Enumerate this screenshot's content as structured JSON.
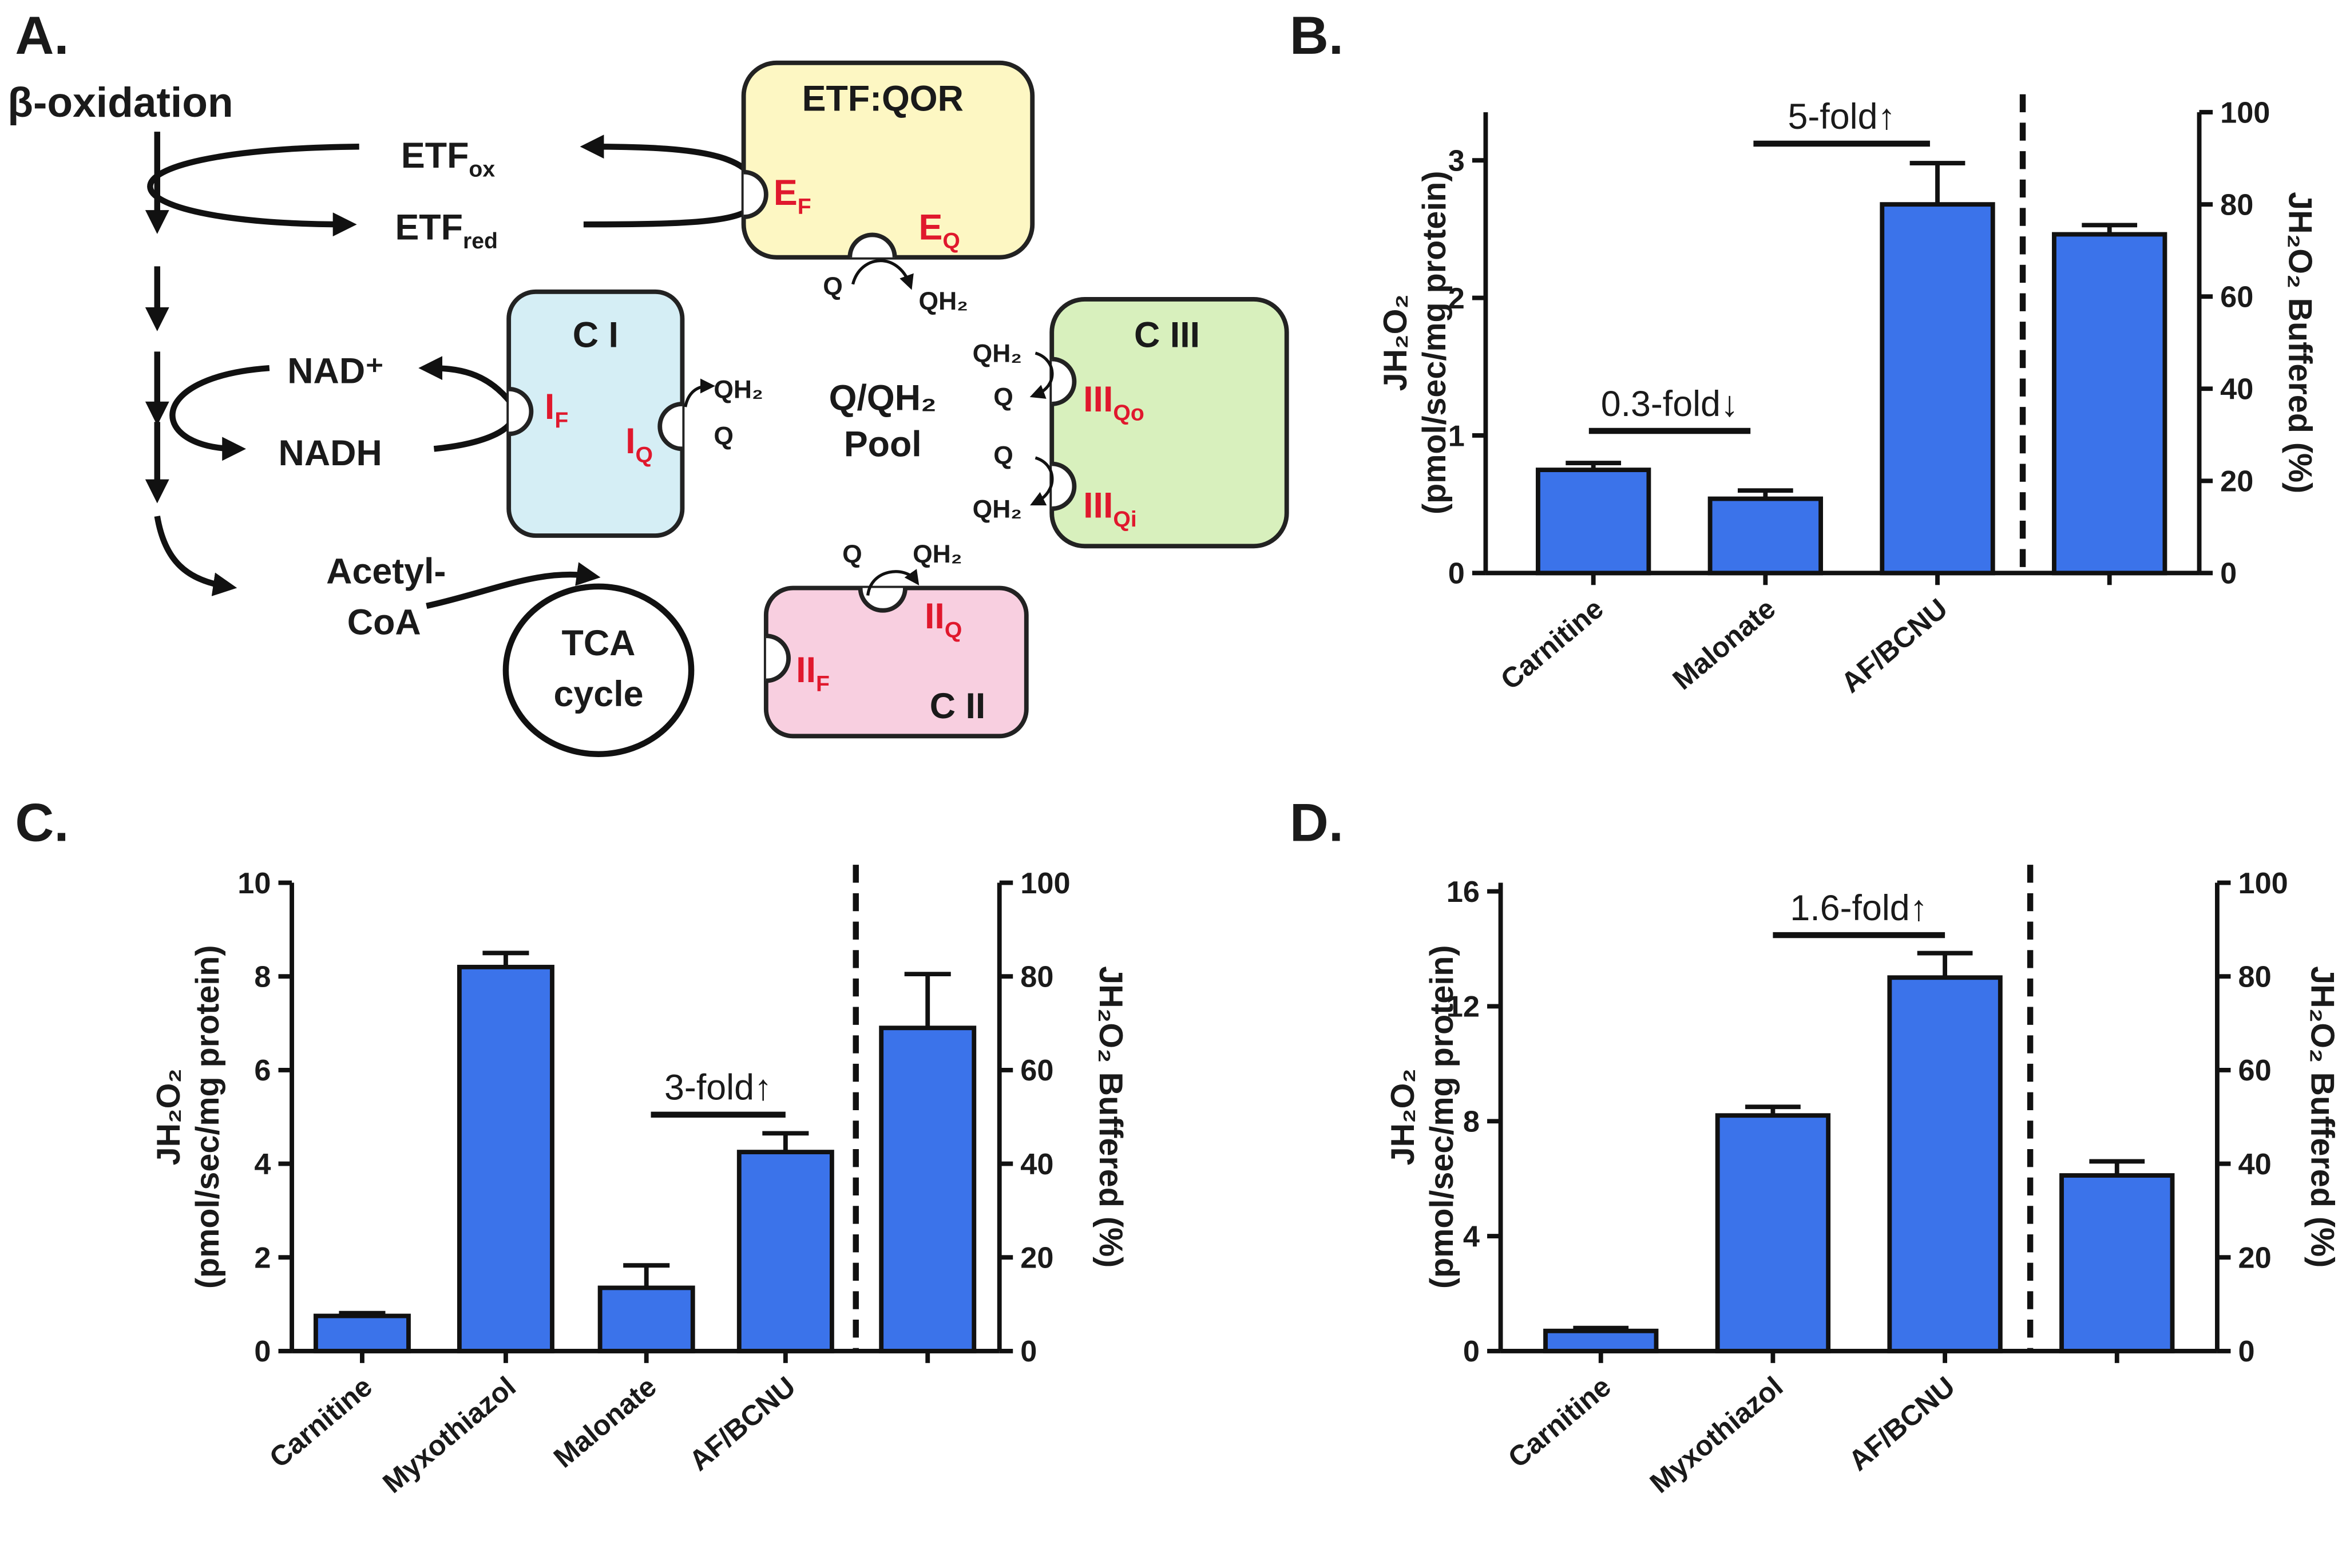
{
  "diagram": {
    "title": "A.",
    "pathway": "β-oxidation",
    "etf_ox": {
      "text": "ETF",
      "sub": "ox"
    },
    "etf_red": {
      "text": "ETF",
      "sub": "red"
    },
    "etf_qor": {
      "label": "ETF:QOR",
      "site_f": {
        "text": "E",
        "sub": "F"
      },
      "site_q": {
        "text": "E",
        "sub": "Q"
      },
      "q": "Q",
      "qh2": "QH₂"
    },
    "c1": {
      "label": "C I",
      "site_f": {
        "text": "I",
        "sub": "F"
      },
      "site_q": {
        "text": "I",
        "sub": "Q"
      },
      "qh2": "QH₂",
      "q": "Q"
    },
    "nad": "NAD⁺",
    "nadh": "NADH",
    "pool": [
      "Q/QH₂",
      "Pool"
    ],
    "c3": {
      "label": "C III",
      "site_qo": {
        "text": "III",
        "sub": "Qo"
      },
      "site_qi": {
        "text": "III",
        "sub": "Qi"
      },
      "qh2_top": "QH₂",
      "q_top": "Q",
      "q_bottom": "Q",
      "qh2_bottom": "QH₂"
    },
    "acetyl_coa": [
      "Acetyl-",
      "CoA"
    ],
    "tca": [
      "TCA",
      "cycle"
    ],
    "c2": {
      "label": "C II",
      "site_f": {
        "text": "II",
        "sub": "F"
      },
      "site_q": {
        "text": "II",
        "sub": "Q"
      },
      "q": "Q",
      "qh2": "QH₂"
    }
  },
  "chart_data": [
    {
      "type": "bar",
      "title": "B.",
      "ylabel": [
        "JH₂O₂",
        "(pmol/sec/mg protein)"
      ],
      "y2label": "JH₂O₂ Buffered (%)",
      "categories": [
        "Carnitine",
        "Malonate",
        "AF/BCNU",
        null
      ],
      "series": [
        {
          "color": "#3b73ea",
          "values": [
            0.75,
            0.54,
            2.68,
            null
          ],
          "errors": [
            0.05,
            0.06,
            0.3,
            null
          ]
        },
        {
          "color": "#3b73ea",
          "axis": "y2",
          "values": [
            null,
            null,
            null,
            73.5
          ],
          "errors": [
            null,
            null,
            null,
            2
          ]
        }
      ],
      "ylim": [
        0,
        3.35
      ],
      "yticks": [
        0,
        1,
        2,
        3
      ],
      "y2lim": [
        0,
        100
      ],
      "y2ticks": [
        0,
        20,
        40,
        60,
        80,
        100
      ],
      "annotations": [
        "0.3-fold↓",
        "5-fold↑"
      ]
    },
    {
      "type": "bar",
      "title": "C.",
      "ylabel": [
        "JH₂O₂",
        "(pmol/sec/mg protein)"
      ],
      "y2label": "JH₂O₂ Buffered (%)",
      "categories": [
        "Carnitine",
        "Myxothiazol",
        "Malonate",
        "AF/BCNU",
        null
      ],
      "series": [
        {
          "color": "#3b73ea",
          "values": [
            0.75,
            8.2,
            1.35,
            4.25,
            null
          ],
          "errors": [
            0.06,
            0.3,
            0.48,
            0.4,
            null
          ]
        },
        {
          "color": "#3b73ea",
          "axis": "y2",
          "values": [
            null,
            null,
            null,
            null,
            69
          ],
          "errors": [
            null,
            null,
            null,
            null,
            11.5
          ]
        }
      ],
      "ylim": [
        0,
        10
      ],
      "yticks": [
        0,
        2,
        4,
        6,
        8,
        10
      ],
      "y2lim": [
        0,
        100
      ],
      "y2ticks": [
        0,
        20,
        40,
        60,
        80,
        100
      ],
      "annotations": [
        "3-fold↑"
      ]
    },
    {
      "type": "bar",
      "title": "D.",
      "ylabel": [
        "JH₂O₂",
        "(pmol/sec/mg protein)"
      ],
      "y2label": "JH₂O₂ Buffered (%)",
      "categories": [
        "Carnitine",
        "Myxothiazol",
        "AF/BCNU",
        null
      ],
      "series": [
        {
          "color": "#3b73ea",
          "values": [
            0.7,
            8.2,
            13.0,
            null
          ],
          "errors": [
            0.1,
            0.3,
            0.85,
            null
          ]
        },
        {
          "color": "#3b73ea",
          "axis": "y2",
          "values": [
            null,
            null,
            null,
            37.5
          ],
          "errors": [
            null,
            null,
            null,
            3
          ]
        }
      ],
      "ylim": [
        0,
        16.3
      ],
      "yticks": [
        0,
        4,
        8,
        12,
        16
      ],
      "y2lim": [
        0,
        100
      ],
      "y2ticks": [
        0,
        20,
        40,
        60,
        80,
        100
      ],
      "annotations": [
        "1.6-fold↑"
      ]
    }
  ]
}
